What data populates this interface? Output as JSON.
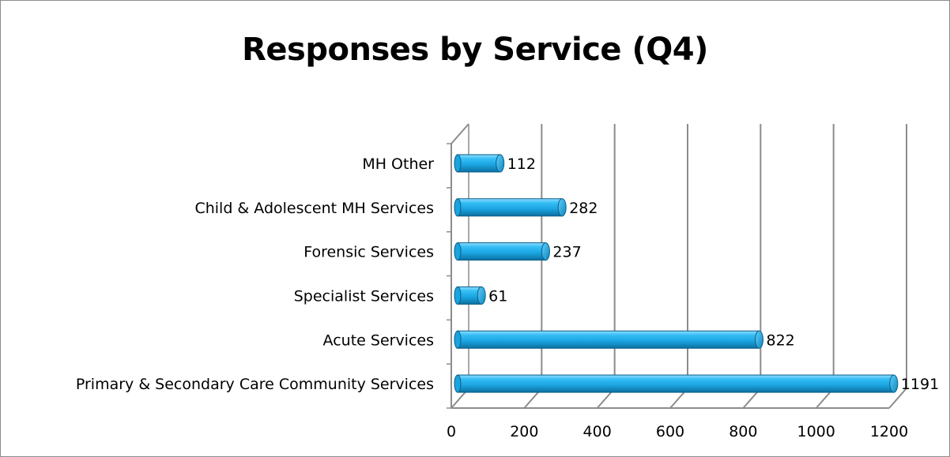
{
  "chart_data": {
    "type": "bar",
    "orientation": "horizontal",
    "title": "Responses by Service (Q4)",
    "xlabel": "",
    "ylabel": "",
    "categories": [
      "MH Other",
      "Child & Adolescent MH Services",
      "Forensic Services",
      "Specialist Services",
      "Acute Services",
      "Primary & Secondary Care Community Services"
    ],
    "values": [
      112,
      282,
      237,
      61,
      822,
      1191
    ],
    "xlim": [
      0,
      1200
    ],
    "xticks": [
      0,
      200,
      400,
      600,
      800,
      1000,
      1200
    ],
    "grid": "vertical",
    "legend": "none",
    "bar_color": "#1ea9e6",
    "bar_style": "3d-cylinder"
  }
}
